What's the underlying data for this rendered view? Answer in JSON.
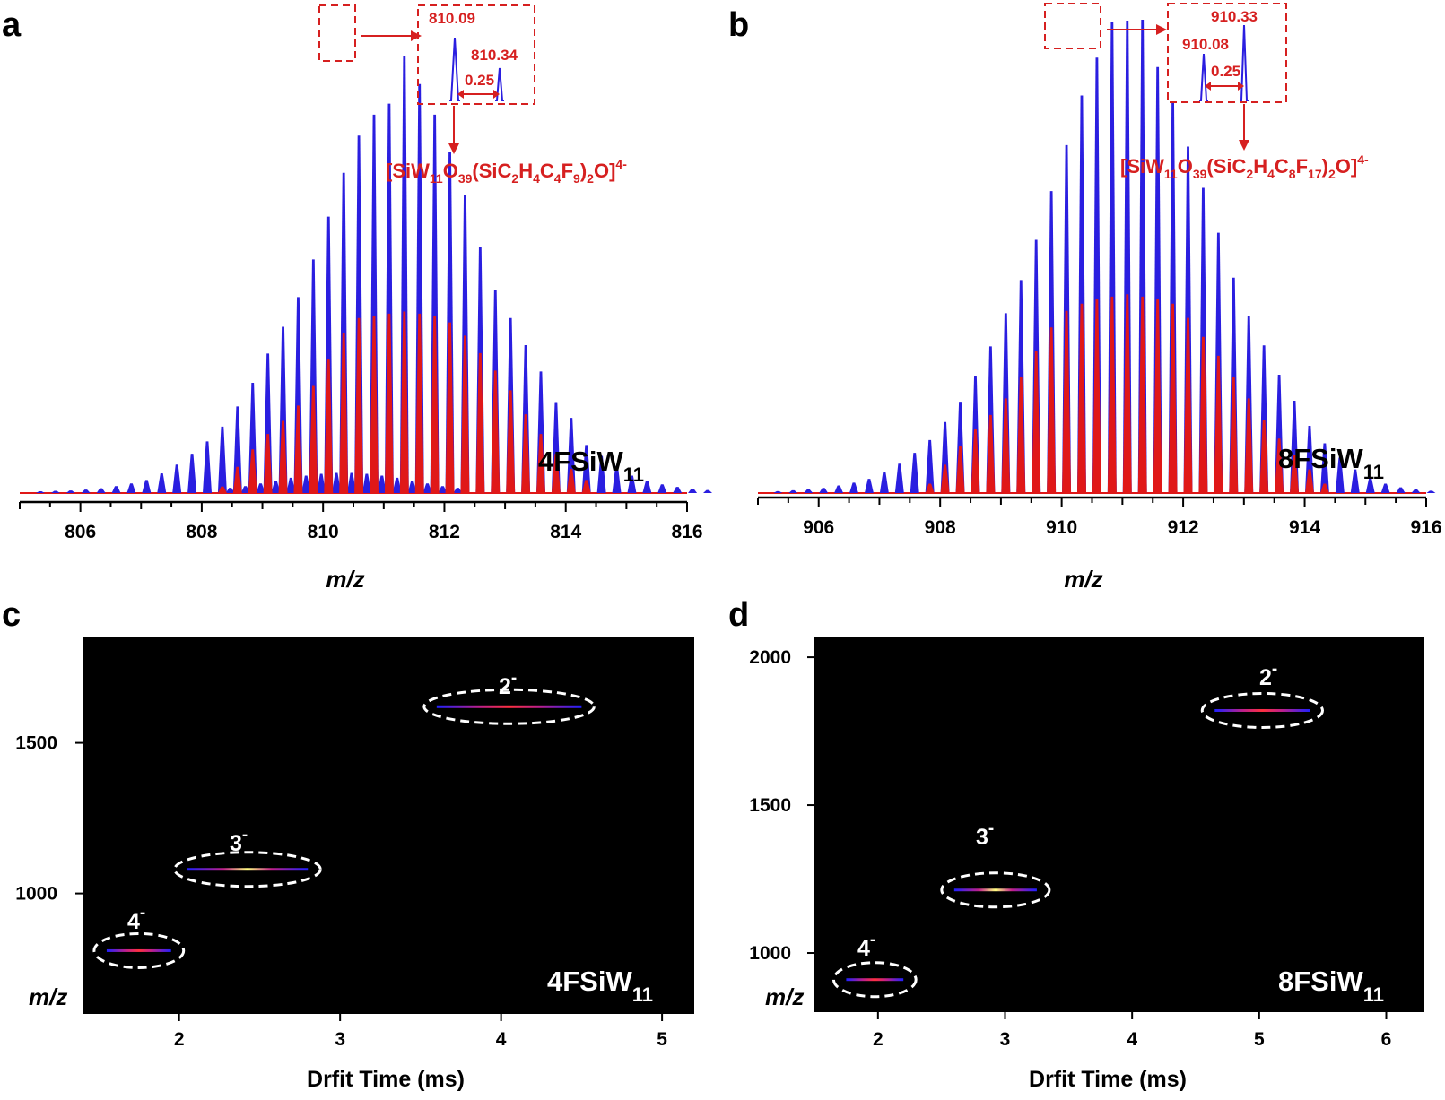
{
  "colors": {
    "experimental": "#2a1ee0",
    "simulated": "#e01818",
    "annotation": "#d62020",
    "imaging_background": "#000000",
    "ellipse": "#ffffff"
  },
  "panels": {
    "a": {
      "letter": "a",
      "compound": "4FSiW",
      "compound_sub": "11",
      "xlabel": "m/z",
      "inset": {
        "peak1": "810.09",
        "peak2": "810.34",
        "spacing": "0.25"
      },
      "formula": {
        "p1": "[SiW",
        "s1": "11",
        "p2": "O",
        "s2": "39",
        "p3": "(SiC",
        "s3": "2",
        "p4": "H",
        "s4": "4",
        "p5": "C",
        "s5": "4",
        "p6": "F",
        "s6": "9",
        "p7": ")",
        "s7": "2",
        "p8": "O]",
        "sup": "4-"
      }
    },
    "b": {
      "letter": "b",
      "compound": "8FSiW",
      "compound_sub": "11",
      "xlabel": "m/z",
      "inset": {
        "peak1": "910.08",
        "peak2": "910.33",
        "spacing": "0.25"
      },
      "formula": {
        "p1": "[SiW",
        "s1": "11",
        "p2": "O",
        "s2": "39",
        "p3": "(SiC",
        "s3": "2",
        "p4": "H",
        "s4": "4",
        "p5": "C",
        "s5": "8",
        "p6": "F",
        "s6": "17",
        "p7": ")",
        "s7": "2",
        "p8": "O]",
        "sup": "4-"
      }
    },
    "c": {
      "letter": "c",
      "compound": "4FSiW",
      "compound_sub": "11",
      "xlabel": "Drfit Time (ms)",
      "ylabel": "m/z",
      "charges": [
        {
          "n": "4",
          "sign": "-"
        },
        {
          "n": "3",
          "sign": "-"
        },
        {
          "n": "2",
          "sign": "-"
        }
      ]
    },
    "d": {
      "letter": "d",
      "compound": "8FSiW",
      "compound_sub": "11",
      "xlabel": "Drfit Time (ms)",
      "ylabel": "m/z",
      "charges": [
        {
          "n": "4",
          "sign": "-"
        },
        {
          "n": "3",
          "sign": "-"
        },
        {
          "n": "2",
          "sign": "-"
        }
      ]
    }
  },
  "chart_data": [
    {
      "id": "a",
      "type": "line",
      "title": "",
      "xlabel": "m/z",
      "ylabel": "",
      "xlim": [
        805,
        816
      ],
      "ylim": [
        0,
        1
      ],
      "x_ticks": [
        806,
        808,
        810,
        812,
        814,
        816
      ],
      "series": [
        {
          "name": "experimental",
          "spacing": 0.25,
          "mz_start": 805.34,
          "values": [
            0.004,
            0.005,
            0.006,
            0.008,
            0.011,
            0.016,
            0.022,
            0.03,
            0.045,
            0.065,
            0.09,
            0.118,
            0.152,
            0.198,
            0.252,
            0.319,
            0.38,
            0.448,
            0.534,
            0.632,
            0.732,
            0.817,
            0.865,
            0.89,
            1.0,
            0.935,
            0.865,
            0.78,
            0.682,
            0.562,
            0.465,
            0.4,
            0.338,
            0.278,
            0.208,
            0.172,
            0.11,
            0.085,
            0.062,
            0.04,
            0.028,
            0.02,
            0.014,
            0.01,
            0.007
          ]
        },
        {
          "name": "simulated",
          "spacing": 0.25,
          "mz_start": 805.34,
          "values": [
            0.0,
            0.0,
            0.0,
            0.0,
            0.0,
            0.0,
            0.0,
            0.0,
            0.0,
            0.0,
            0.0,
            0.0,
            0.015,
            0.06,
            0.1,
            0.135,
            0.165,
            0.2,
            0.245,
            0.305,
            0.365,
            0.4,
            0.405,
            0.41,
            0.415,
            0.41,
            0.405,
            0.39,
            0.36,
            0.32,
            0.28,
            0.235,
            0.18,
            0.135,
            0.09,
            0.055,
            0.03,
            0.0,
            0.0,
            0.0,
            0.0,
            0.0,
            0.0,
            0.0,
            0.0
          ]
        },
        {
          "name": "minor-species",
          "spacing": 0.25,
          "mz_start": 808.47,
          "values": [
            0.012,
            0.016,
            0.022,
            0.028,
            0.035,
            0.04,
            0.044,
            0.046,
            0.046,
            0.044,
            0.04,
            0.035,
            0.028,
            0.022,
            0.016,
            0.012
          ]
        }
      ]
    },
    {
      "id": "b",
      "type": "line",
      "title": "",
      "xlabel": "m/z",
      "ylabel": "",
      "xlim": [
        905,
        916
      ],
      "ylim": [
        0,
        1
      ],
      "x_ticks": [
        906,
        908,
        910,
        912,
        914,
        916
      ],
      "series": [
        {
          "name": "experimental",
          "spacing": 0.25,
          "mz_start": 905.33,
          "values": [
            0.004,
            0.006,
            0.008,
            0.011,
            0.016,
            0.022,
            0.03,
            0.045,
            0.062,
            0.085,
            0.112,
            0.15,
            0.193,
            0.248,
            0.31,
            0.38,
            0.45,
            0.535,
            0.638,
            0.735,
            0.84,
            0.92,
            0.995,
            0.998,
            1.0,
            0.9,
            0.825,
            0.732,
            0.645,
            0.55,
            0.455,
            0.375,
            0.312,
            0.25,
            0.195,
            0.142,
            0.105,
            0.075,
            0.05,
            0.032,
            0.02,
            0.012,
            0.008,
            0.005
          ]
        },
        {
          "name": "simulated",
          "spacing": 0.25,
          "mz_start": 905.33,
          "values": [
            0.0,
            0.0,
            0.0,
            0.0,
            0.0,
            0.0,
            0.0,
            0.0,
            0.0,
            0.0,
            0.02,
            0.06,
            0.1,
            0.135,
            0.165,
            0.2,
            0.245,
            0.3,
            0.35,
            0.385,
            0.4,
            0.41,
            0.415,
            0.42,
            0.415,
            0.41,
            0.4,
            0.37,
            0.33,
            0.29,
            0.245,
            0.2,
            0.155,
            0.115,
            0.08,
            0.05,
            0.02,
            0.0,
            0.0,
            0.0,
            0.0,
            0.0,
            0.0,
            0.0
          ]
        }
      ]
    },
    {
      "id": "c",
      "type": "heatmap",
      "title": "",
      "xlabel": "Drfit Time (ms)",
      "ylabel": "m/z",
      "xlim": [
        1.4,
        5.2
      ],
      "ylim": [
        600,
        1850
      ],
      "x_ticks": [
        2,
        3,
        4,
        5
      ],
      "y_ticks": [
        1000,
        1500
      ],
      "features": [
        {
          "label": "4-",
          "charge": 4,
          "drift_start": 1.55,
          "drift_end": 1.95,
          "mz": 810
        },
        {
          "label": "3-",
          "charge": 3,
          "drift_start": 2.05,
          "drift_end": 2.8,
          "mz": 1080
        },
        {
          "label": "2-",
          "charge": 2,
          "drift_start": 3.6,
          "drift_end": 4.5,
          "mz": 1620
        }
      ]
    },
    {
      "id": "d",
      "type": "heatmap",
      "title": "",
      "xlabel": "Drfit Time (ms)",
      "ylabel": "m/z",
      "xlim": [
        1.5,
        6.3
      ],
      "ylim": [
        800,
        2070
      ],
      "x_ticks": [
        2,
        3,
        4,
        5,
        6
      ],
      "y_ticks": [
        1000,
        1500,
        2000
      ],
      "features": [
        {
          "label": "4-",
          "charge": 4,
          "drift_start": 1.75,
          "drift_end": 2.2,
          "mz": 910
        },
        {
          "label": "3-",
          "charge": 3,
          "drift_start": 2.6,
          "drift_end": 3.25,
          "mz": 1213
        },
        {
          "label": "2-",
          "charge": 2,
          "drift_start": 4.65,
          "drift_end": 5.4,
          "mz": 1820
        }
      ]
    }
  ]
}
